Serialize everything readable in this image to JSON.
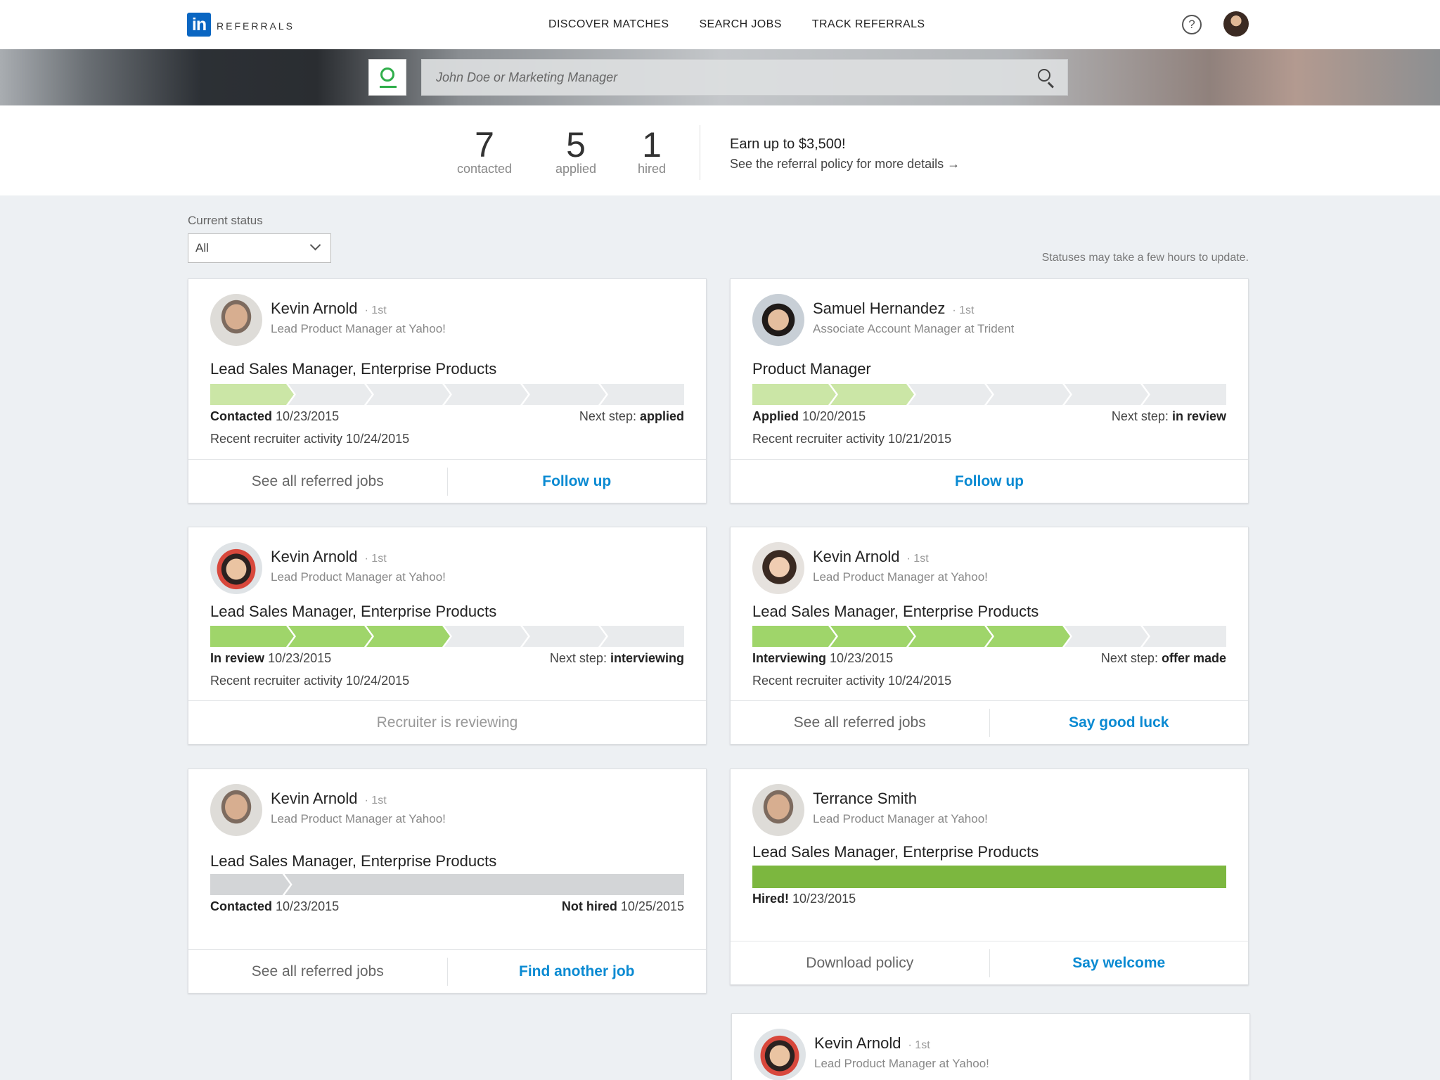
{
  "nav": {
    "logo_mark": "in",
    "logo_text": "REFERRALS",
    "links": [
      "DISCOVER MATCHES",
      "SEARCH JOBS",
      "TRACK REFERRALS"
    ],
    "help_symbol": "?"
  },
  "search": {
    "placeholder": "John Doe or Marketing Manager"
  },
  "stats": {
    "contacted": {
      "value": "7",
      "label": "contacted"
    },
    "applied": {
      "value": "5",
      "label": "applied"
    },
    "hired": {
      "value": "1",
      "label": "hired"
    },
    "earn_title": "Earn up to $3,500!",
    "earn_link": "See the referral policy for more details →"
  },
  "filter": {
    "label": "Current status",
    "selected": "All",
    "note": "Statuses may take a few hours to update."
  },
  "colors": {
    "light_green": "#cbe6a6",
    "mid_green": "#9fd56a",
    "dark_green": "#7cb73f",
    "inactive": "#e9ebed",
    "grey_fill": "#d3d5d7",
    "link_blue": "#0a8ad2"
  },
  "cards": [
    {
      "name": "Kevin Arnold",
      "degree": "· 1st",
      "headline": "Lead Product Manager at Yahoo!",
      "job": "Lead Sales Manager, Enterprise Products",
      "progress_steps_complete": 1,
      "progress_steps_total": 6,
      "status_bold": "Contacted",
      "status_date": "10/23/2015",
      "next_prefix": "Next step:",
      "next_bold": "applied",
      "recent": "Recent recruiter activity 10/24/2015",
      "actions": [
        "See all referred jobs",
        "Follow up"
      ]
    },
    {
      "name": "Samuel Hernandez",
      "degree": "· 1st",
      "headline": "Associate Account Manager at Trident",
      "job": "Product Manager",
      "progress_steps_complete": 2,
      "progress_steps_total": 6,
      "status_bold": "Applied",
      "status_date": "10/20/2015",
      "next_prefix": "Next step:",
      "next_bold": "in review",
      "recent": "Recent recruiter activity 10/21/2015",
      "actions": [
        "Follow up"
      ]
    },
    {
      "name": "Kevin Arnold",
      "degree": "· 1st",
      "headline": "Lead Product Manager at Yahoo!",
      "job": "Lead Sales Manager, Enterprise Products",
      "progress_steps_complete": 3,
      "progress_steps_total": 6,
      "status_bold": "In review",
      "status_date": "10/23/2015",
      "next_prefix": "Next step:",
      "next_bold": "interviewing",
      "recent": "Recent recruiter activity 10/24/2015",
      "actions": [
        "Recruiter is reviewing"
      ]
    },
    {
      "name": "Kevin Arnold",
      "degree": "· 1st",
      "headline": "Lead Product Manager at Yahoo!",
      "job": "Lead Sales Manager, Enterprise Products",
      "progress_steps_complete": 4,
      "progress_steps_total": 6,
      "status_bold": "Interviewing",
      "status_date": "10/23/2015",
      "next_prefix": "Next step:",
      "next_bold": "offer made",
      "recent": "Recent recruiter activity 10/24/2015",
      "actions": [
        "See all referred jobs",
        "Say good luck"
      ]
    },
    {
      "name": "Kevin Arnold",
      "degree": "· 1st",
      "headline": "Lead Product Manager at Yahoo!",
      "job": "Lead Sales Manager, Enterprise Products",
      "status_bold": "Contacted",
      "status_date": "10/23/2015",
      "end_bold": "Not hired",
      "end_date": "10/25/2015",
      "actions": [
        "See all referred jobs",
        "Find another job"
      ]
    },
    {
      "name": "Terrance Smith",
      "headline": "Lead Product Manager at Yahoo!",
      "job": "Lead Sales Manager, Enterprise Products",
      "progress_percent": 100,
      "status_bold": "Hired!",
      "status_date": "10/23/2015",
      "actions": [
        "Download policy",
        "Say welcome"
      ]
    },
    {
      "name": "Kevin Arnold",
      "degree": "· 1st",
      "headline": "Lead Product Manager at Yahoo!"
    }
  ]
}
